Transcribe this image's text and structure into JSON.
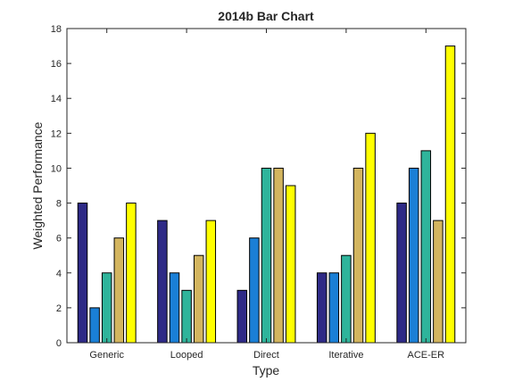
{
  "chart_data": {
    "type": "bar",
    "title": "2014b Bar Chart",
    "xlabel": "Type",
    "ylabel": "Weighted Performance",
    "categories": [
      "Generic",
      "Looped",
      "Direct",
      "Iterative",
      "ACE-ER"
    ],
    "ylim": [
      0,
      18
    ],
    "yticks": [
      0,
      2,
      4,
      6,
      8,
      10,
      12,
      14,
      16,
      18
    ],
    "grid": false,
    "legend": "none",
    "series": [
      {
        "values": [
          8,
          7,
          3,
          4,
          8
        ],
        "color": "#2e2a86"
      },
      {
        "values": [
          2,
          4,
          6,
          4,
          10
        ],
        "color": "#1a7fd6"
      },
      {
        "values": [
          4,
          3,
          10,
          5,
          11
        ],
        "color": "#2fb49b"
      },
      {
        "values": [
          6,
          5,
          10,
          10,
          7
        ],
        "color": "#d3b55f"
      },
      {
        "values": [
          8,
          7,
          9,
          12,
          17
        ],
        "color": "#ffff00"
      }
    ]
  }
}
